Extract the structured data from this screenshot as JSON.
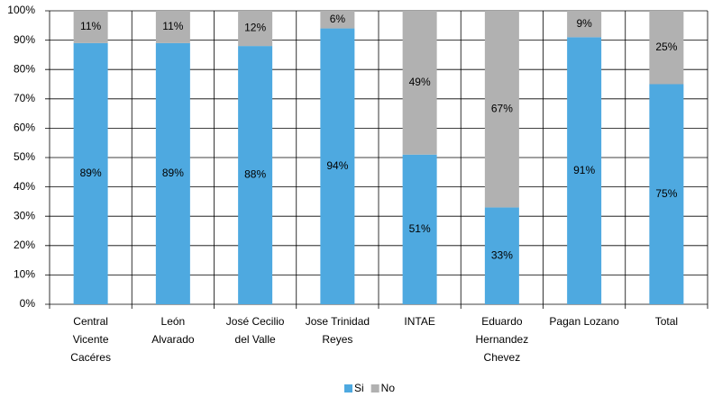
{
  "chart_data": {
    "type": "stacked_bar",
    "categories": [
      "Central\nVicente\nCacéres",
      "León\nAlvarado",
      "José Cecilio\ndel Valle",
      "Jose Trinidad\nReyes",
      "INTAE",
      "Eduardo\nHernandez\nChevez",
      "Pagan Lozano",
      "Total"
    ],
    "series": [
      {
        "name": "Si",
        "color": "#4ea9e0",
        "values": [
          89,
          89,
          88,
          94,
          51,
          33,
          91,
          75
        ],
        "value_labels": [
          "89%",
          "89%",
          "88%",
          "94%",
          "51%",
          "33%",
          "91%",
          "75%"
        ]
      },
      {
        "name": "No",
        "color": "#b1b1b1",
        "values": [
          11,
          11,
          12,
          6,
          49,
          67,
          9,
          25
        ],
        "value_labels": [
          "11%",
          "11%",
          "12%",
          "6%",
          "49%",
          "67%",
          "9%",
          "25%"
        ]
      }
    ],
    "ylim": [
      0,
      100
    ],
    "yticks": [
      {
        "value": 0,
        "label": "0%"
      },
      {
        "value": 10,
        "label": "10%"
      },
      {
        "value": 20,
        "label": "20%"
      },
      {
        "value": 30,
        "label": "30%"
      },
      {
        "value": 40,
        "label": "40%"
      },
      {
        "value": 50,
        "label": "50%"
      },
      {
        "value": 60,
        "label": "60%"
      },
      {
        "value": 70,
        "label": "70%"
      },
      {
        "value": 80,
        "label": "80%"
      },
      {
        "value": 90,
        "label": "90%"
      },
      {
        "value": 100,
        "label": "100%"
      }
    ],
    "grid": true,
    "legend": "bottom"
  }
}
